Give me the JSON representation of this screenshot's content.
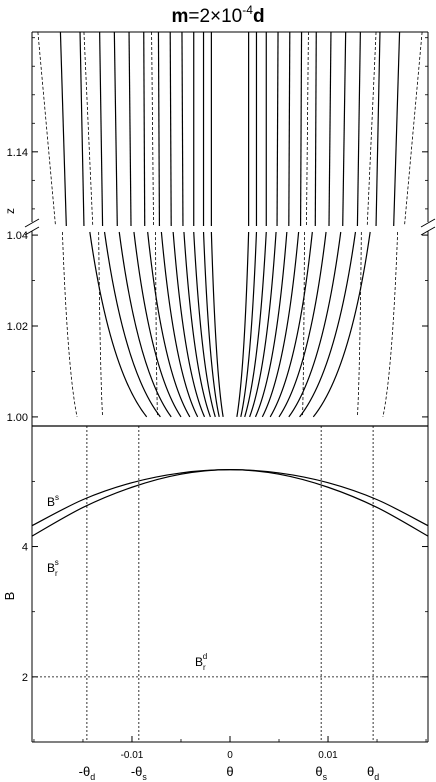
{
  "title": {
    "m": "m",
    "eq": "=2×10",
    "exp": "-4",
    "d": "d"
  },
  "chart_data": [
    {
      "type": "line",
      "panel": "top-upper",
      "ylabel": "z",
      "ylim": [
        1.127,
        1.161
      ],
      "yticks": [
        {
          "value": 1.14,
          "label": "1.14"
        }
      ],
      "xlim": [
        -0.0202,
        0.0202
      ],
      "axis_break": true,
      "solid_x_at_top": [
        -0.0173,
        -0.0153,
        -0.0133,
        -0.0118,
        -0.0103,
        -0.0088,
        -0.0073,
        -0.0061,
        -0.0049,
        -0.0037,
        -0.0027,
        -0.0019,
        0.0019,
        0.0027,
        0.0037,
        0.0049,
        0.0061,
        0.0073,
        0.0088,
        0.0103,
        0.0118,
        0.0133,
        0.0153,
        0.0173
      ],
      "solid_x_at_bottom": [
        -0.0167,
        -0.0149,
        -0.013,
        -0.0115,
        -0.0101,
        -0.0087,
        -0.0072,
        -0.006,
        -0.0048,
        -0.0037,
        -0.0027,
        -0.0019,
        0.0019,
        0.0027,
        0.0037,
        0.0048,
        0.006,
        0.0072,
        0.0087,
        0.0101,
        0.0115,
        0.013,
        0.0149,
        0.0167
      ],
      "dashed_x_at_top": [
        -0.0196,
        -0.0149,
        -0.008,
        0.008,
        0.0149,
        0.0196
      ],
      "dashed_x_at_bottom": [
        -0.0178,
        -0.014,
        -0.0078,
        0.0078,
        0.014,
        0.0178
      ]
    },
    {
      "type": "line",
      "panel": "top-lower",
      "ylabel": "z",
      "ylim": [
        0.998,
        1.042
      ],
      "yticks": [
        {
          "value": 1.0,
          "label": "1.00"
        },
        {
          "value": 1.02,
          "label": "1.02"
        },
        {
          "value": 1.04,
          "label": "1.04"
        }
      ],
      "xlim": [
        -0.0202,
        0.0202
      ],
      "solid_x_at_top": [
        -0.0143,
        -0.0128,
        -0.0113,
        -0.0098,
        -0.0084,
        -0.007,
        -0.0058,
        -0.0047,
        -0.0037,
        -0.0027,
        -0.0019,
        0.0019,
        0.0027,
        0.0037,
        0.0047,
        0.0058,
        0.007,
        0.0084,
        0.0098,
        0.0113,
        0.0128,
        0.0143
      ],
      "solid_x_at_base": [
        -0.0085,
        -0.0071,
        -0.006,
        -0.005,
        -0.0041,
        -0.0033,
        -0.0026,
        -0.002,
        -0.0015,
        -0.0011,
        -0.0007,
        0.0007,
        0.0011,
        0.0015,
        0.002,
        0.0026,
        0.0033,
        0.0041,
        0.005,
        0.006,
        0.0071,
        0.0085
      ],
      "dashed_x_at_top": [
        -0.0171,
        -0.0134,
        -0.0076,
        0.0076,
        0.0134,
        0.0171
      ],
      "dashed_x_at_base": [
        -0.0156,
        -0.013,
        -0.0074,
        0.0074,
        0.013,
        0.0156
      ]
    },
    {
      "type": "line",
      "panel": "bottom",
      "xlabel": "θ",
      "ylabel": "B",
      "xlim": [
        -0.0202,
        0.0202
      ],
      "ylim": [
        1.0,
        5.85
      ],
      "xticks": [
        {
          "value": -0.01,
          "label": "-0.01"
        },
        {
          "value": 0.0,
          "label": "0"
        },
        {
          "value": 0.01,
          "label": "0.01"
        }
      ],
      "yticks": [
        {
          "value": 2,
          "label": "2"
        },
        {
          "value": 4,
          "label": "4"
        }
      ],
      "special_x": [
        {
          "value": -0.0146,
          "main": "-θ",
          "sub": "d"
        },
        {
          "value": -0.0093,
          "main": "-θ",
          "sub": "s"
        },
        {
          "value": 0.0093,
          "main": "θ",
          "sub": "s"
        },
        {
          "value": 0.0146,
          "main": "θ",
          "sub": "d"
        }
      ],
      "series": [
        {
          "name": "B^s",
          "x": [
            -0.0202,
            -0.015,
            -0.01,
            -0.005,
            0.0,
            0.005,
            0.01,
            0.015,
            0.0202
          ],
          "values": [
            4.32,
            4.72,
            4.98,
            5.13,
            5.18,
            5.13,
            4.98,
            4.72,
            4.32
          ]
        },
        {
          "name": "B_r^s",
          "x": [
            -0.0202,
            -0.015,
            -0.01,
            -0.005,
            0.0,
            0.005,
            0.01,
            0.015,
            0.0202
          ],
          "values": [
            4.16,
            4.6,
            4.91,
            5.11,
            5.18,
            5.11,
            4.91,
            4.6,
            4.16
          ]
        },
        {
          "name": "B_r^d",
          "x": [
            -0.0202,
            0.0202
          ],
          "values": [
            2.0,
            2.0
          ]
        }
      ],
      "labels": {
        "bs": {
          "main": "B",
          "sup": "s"
        },
        "brs": {
          "main": "B",
          "sub": "r",
          "sup": "s"
        },
        "brd": {
          "main": "B",
          "sub": "r",
          "sup": "d"
        }
      }
    }
  ]
}
